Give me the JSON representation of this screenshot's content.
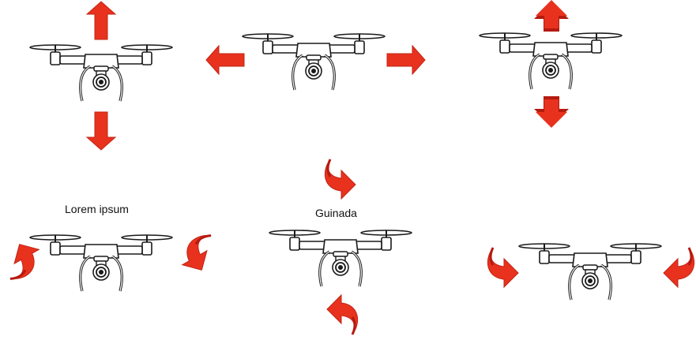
{
  "labels": {
    "roll_caption": "Lorem ipsum",
    "yaw_caption": "Guinada"
  },
  "colors": {
    "arrow_red": "#e8321e",
    "arrow_dark": "#b51a10",
    "drone_stroke": "#1a1a1a",
    "drone_fill": "#ffffff"
  },
  "icons": {
    "drone": "quadcopter-drone-icon",
    "straight_arrow": "arrow-icon",
    "curved_arrow": "rotation-arrow-icon"
  }
}
